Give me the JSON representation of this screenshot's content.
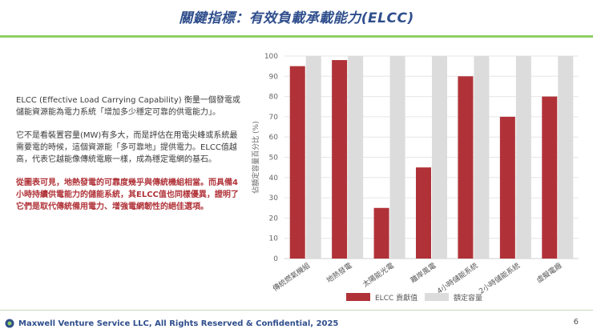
{
  "slide": {
    "title": "關鍵指標：有效負載承載能力(ELCC)",
    "paragraphs": [
      "ELCC (Effective Load Carrying Capability) 衡量一個發電或儲能資源能為電力系統「增加多少穩定可靠的供電能力」。",
      "它不是看裝置容量(MW)有多大，而是評估在用電尖峰或系統最需要電的時候，這個資源能「多可靠地」提供電力。ELCC值越高，代表它越能像傳統電廠一樣，成為穩定電網的基石。"
    ],
    "highlight": "從圖表可見，地熱發電的可靠度幾乎與傳統機組相當。而具備4小時持續供電能力的儲能系統，其ELCC值也同樣優異，證明了它們是取代傳統備用電力、增強電網韌性的絕佳選項。",
    "footer": "Maxwell Venture Service LLC, All Rights Reserved & Confidential, 2025",
    "page_number": "6"
  },
  "colors": {
    "title": "#2f4e8c",
    "accent_green": "#8fcf62",
    "elcc_bar": "#b03238",
    "rated_bar": "#dcdcdc"
  },
  "chart_data": {
    "type": "bar",
    "title": "",
    "categories": [
      "傳統燃氣機組",
      "地熱發電",
      "太陽能光電",
      "離岸風電",
      "4小時儲能系統",
      "2小時儲能系統",
      "虛擬電廠"
    ],
    "series": [
      {
        "name": "ELCC 貢獻值",
        "values": [
          95,
          98,
          25,
          45,
          90,
          70,
          80
        ],
        "color": "#b03238"
      },
      {
        "name": "額定容量",
        "values": [
          100,
          100,
          100,
          100,
          100,
          100,
          100
        ],
        "color": "#dcdcdc"
      }
    ],
    "ylabel": "佔額定容量百分比 (%)",
    "xlabel": "",
    "ylim": [
      0,
      100
    ],
    "yticks": [
      0,
      10,
      20,
      30,
      40,
      50,
      60,
      70,
      80,
      90,
      100
    ],
    "legend_position": "bottom",
    "grid": true
  }
}
